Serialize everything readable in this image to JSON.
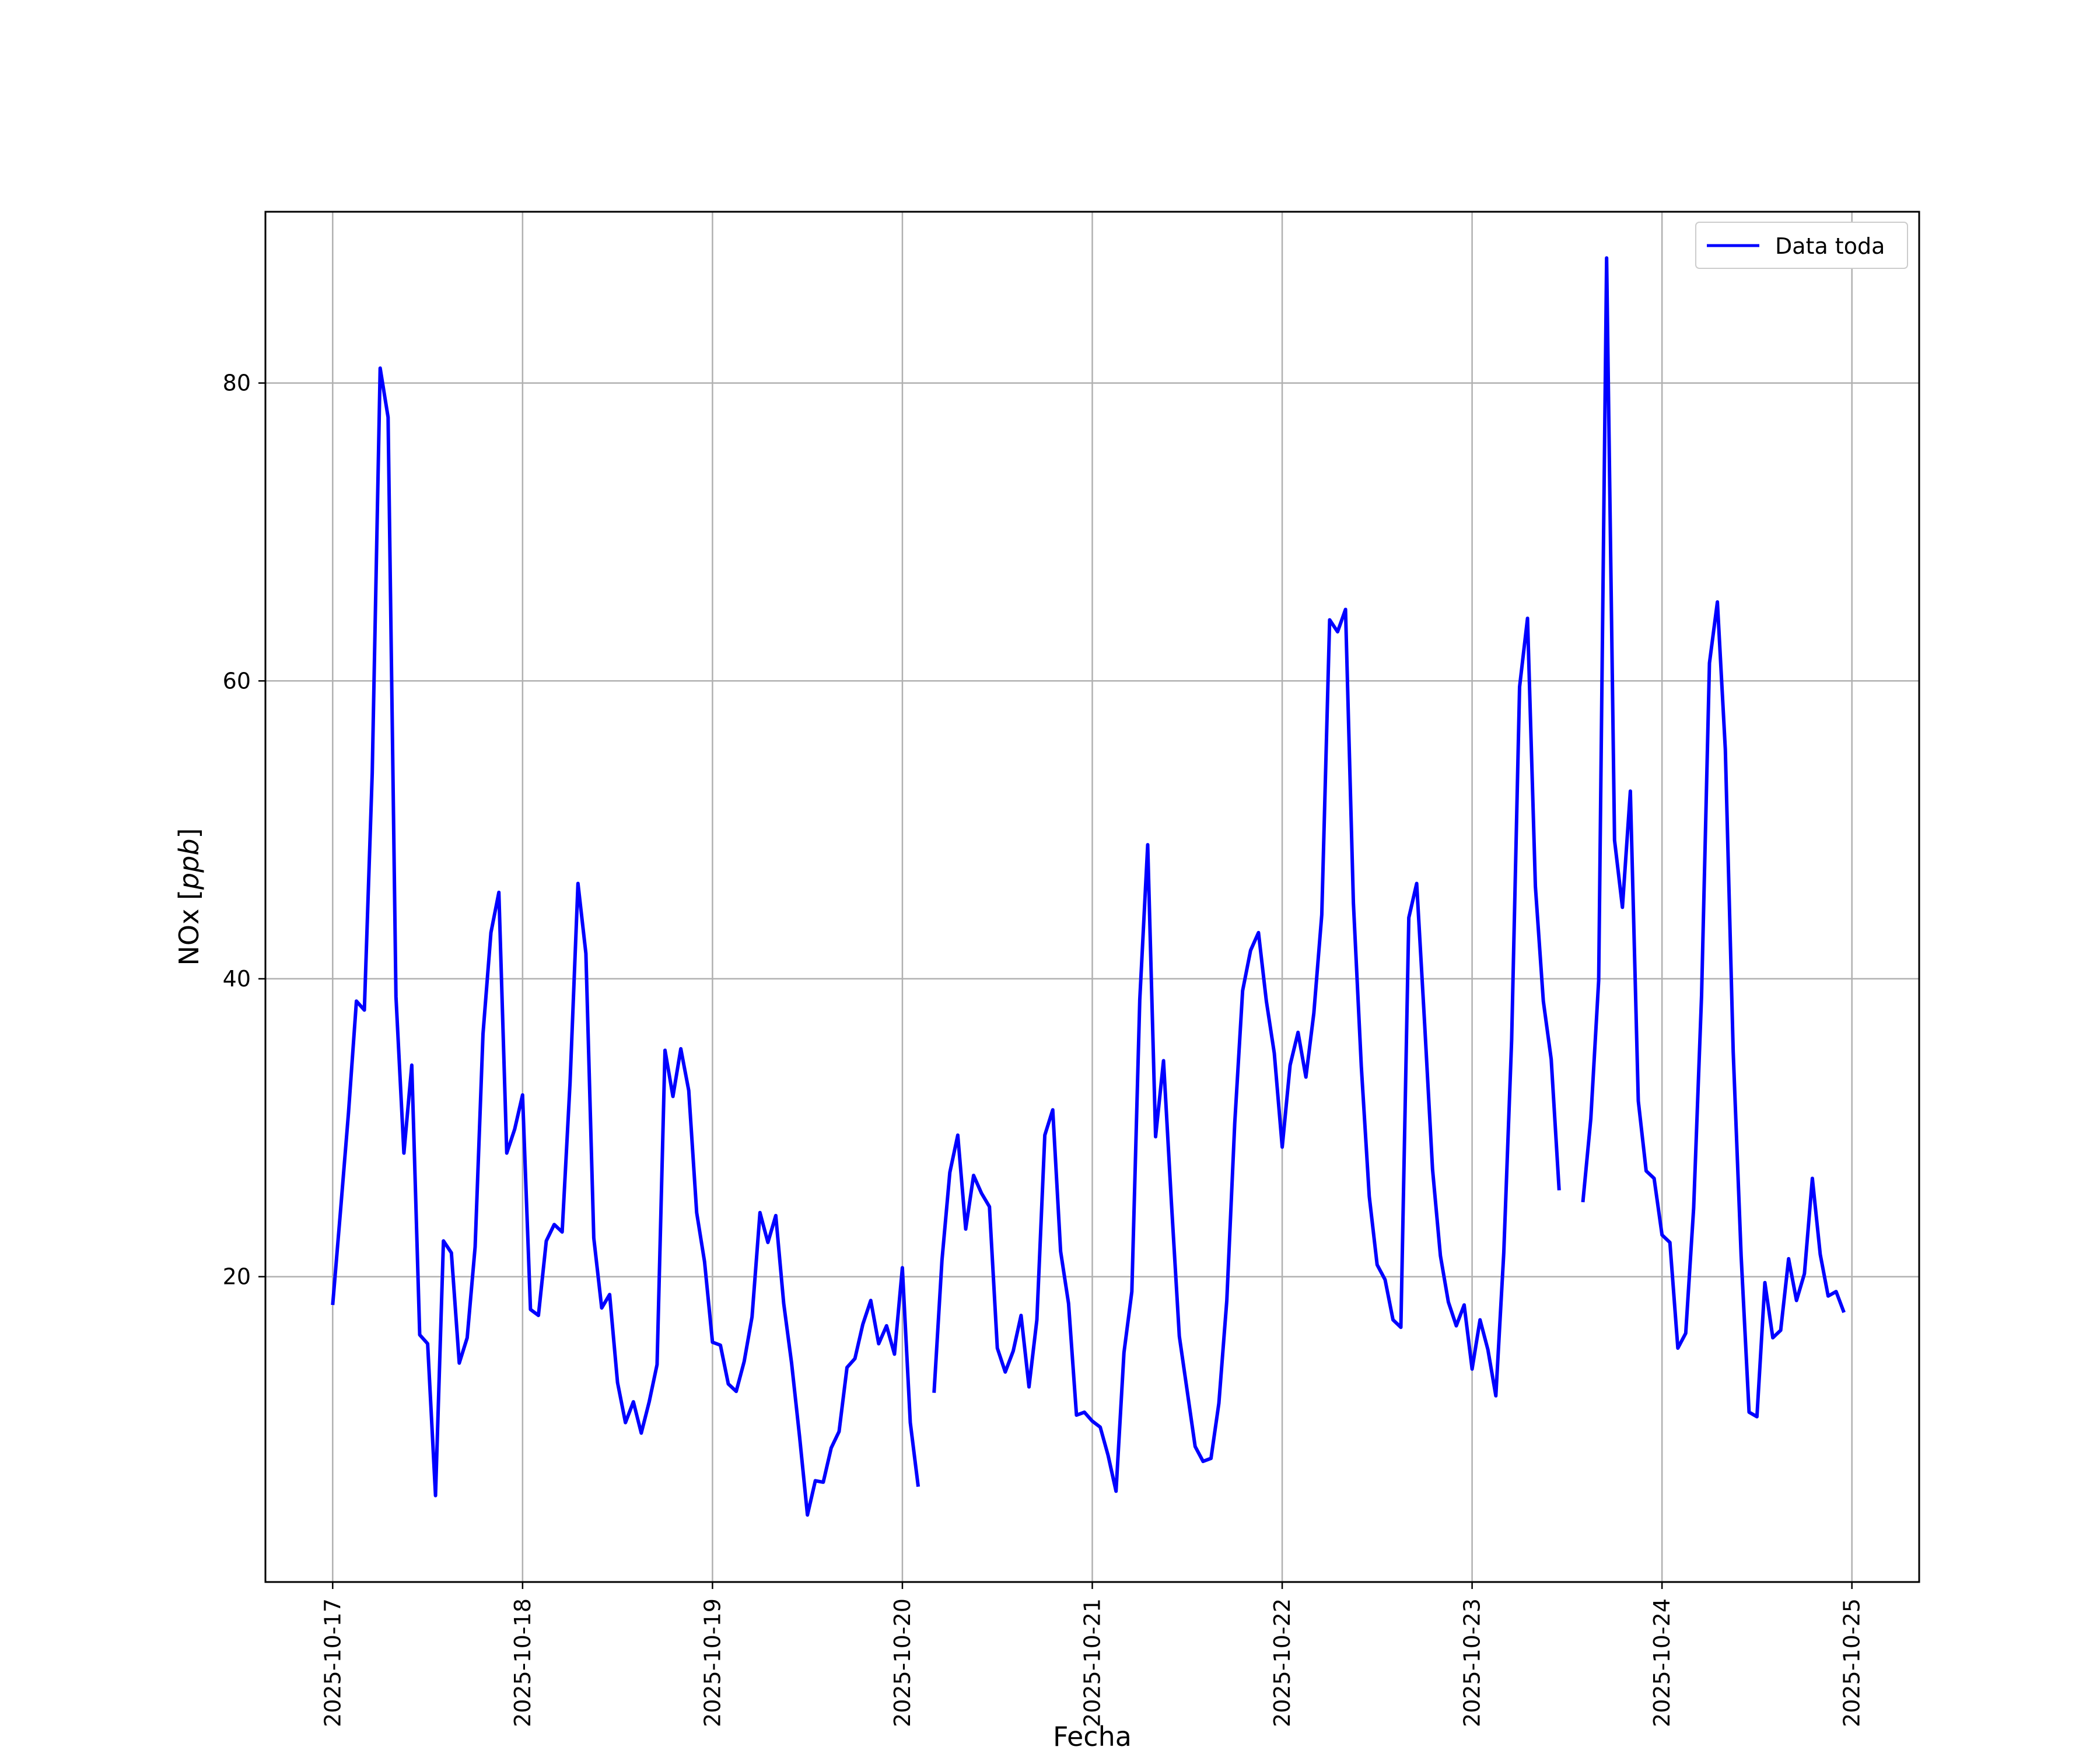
{
  "chart_data": {
    "type": "line",
    "xlabel": "Fecha",
    "ylabel_text": "NOx",
    "ylabel_unit": "ppb",
    "x_ticks": [
      "2025-10-17",
      "2025-10-18",
      "2025-10-19",
      "2025-10-20",
      "2025-10-21",
      "2025-10-22",
      "2025-10-23",
      "2025-10-24",
      "2025-10-25"
    ],
    "y_ticks": [
      20,
      40,
      60,
      80
    ],
    "xlim": [
      "2025-10-16T15:30",
      "2025-10-25T08:30"
    ],
    "ylim": [
      -0.5,
      91.5
    ],
    "grid": true,
    "legend_position": "top-right",
    "colors": {
      "line": "#0000ff",
      "grid": "#b0b0b0",
      "axes": "#000000"
    },
    "series": [
      {
        "name": "Data toda",
        "segments": [
          [
            [
              "2025-10-17T00:00",
              18.1
            ],
            [
              "2025-10-17T01:00",
              24.5
            ],
            [
              "2025-10-17T02:00",
              31.0
            ],
            [
              "2025-10-17T03:00",
              38.5
            ],
            [
              "2025-10-17T04:00",
              37.9
            ],
            [
              "2025-10-17T05:00",
              53.8
            ],
            [
              "2025-10-17T06:00",
              81.0
            ],
            [
              "2025-10-17T07:00",
              77.7
            ],
            [
              "2025-10-17T08:00",
              38.8
            ],
            [
              "2025-10-17T09:00",
              28.3
            ],
            [
              "2025-10-17T10:00",
              34.2
            ],
            [
              "2025-10-17T11:00",
              16.1
            ],
            [
              "2025-10-17T12:00",
              15.5
            ],
            [
              "2025-10-17T13:00",
              5.3
            ],
            [
              "2025-10-17T14:00",
              22.4
            ],
            [
              "2025-10-17T15:00",
              21.6
            ],
            [
              "2025-10-17T16:00",
              14.2
            ],
            [
              "2025-10-17T17:00",
              15.9
            ],
            [
              "2025-10-17T18:00",
              22.0
            ],
            [
              "2025-10-17T19:00",
              36.3
            ],
            [
              "2025-10-17T20:00",
              43.1
            ],
            [
              "2025-10-17T21:00",
              45.8
            ],
            [
              "2025-10-17T22:00",
              28.3
            ],
            [
              "2025-10-17T23:00",
              29.9
            ],
            [
              "2025-10-18T00:00",
              32.2
            ],
            [
              "2025-10-18T01:00",
              17.8
            ],
            [
              "2025-10-18T02:00",
              17.4
            ],
            [
              "2025-10-18T03:00",
              22.4
            ],
            [
              "2025-10-18T04:00",
              23.5
            ],
            [
              "2025-10-18T05:00",
              23.0
            ],
            [
              "2025-10-18T06:00",
              33.0
            ],
            [
              "2025-10-18T07:00",
              46.4
            ],
            [
              "2025-10-18T08:00",
              41.7
            ],
            [
              "2025-10-18T09:00",
              22.6
            ],
            [
              "2025-10-18T10:00",
              17.9
            ],
            [
              "2025-10-18T11:00",
              18.8
            ],
            [
              "2025-10-18T12:00",
              12.9
            ],
            [
              "2025-10-18T13:00",
              10.2
            ],
            [
              "2025-10-18T14:00",
              11.6
            ],
            [
              "2025-10-18T15:00",
              9.5
            ],
            [
              "2025-10-18T16:00",
              11.6
            ],
            [
              "2025-10-18T17:00",
              14.1
            ],
            [
              "2025-10-18T18:00",
              35.2
            ],
            [
              "2025-10-18T19:00",
              32.1
            ],
            [
              "2025-10-18T20:00",
              35.3
            ],
            [
              "2025-10-18T21:00",
              32.5
            ],
            [
              "2025-10-18T22:00",
              24.3
            ],
            [
              "2025-10-18T23:00",
              21.0
            ],
            [
              "2025-10-19T00:00",
              15.6
            ],
            [
              "2025-10-19T01:00",
              15.4
            ],
            [
              "2025-10-19T02:00",
              12.8
            ],
            [
              "2025-10-19T03:00",
              12.3
            ],
            [
              "2025-10-19T04:00",
              14.3
            ],
            [
              "2025-10-19T05:00",
              17.3
            ],
            [
              "2025-10-19T06:00",
              24.3
            ],
            [
              "2025-10-19T07:00",
              22.3
            ],
            [
              "2025-10-19T08:00",
              24.1
            ],
            [
              "2025-10-19T09:00",
              18.2
            ],
            [
              "2025-10-19T10:00",
              14.2
            ],
            [
              "2025-10-19T11:00",
              9.3
            ],
            [
              "2025-10-19T12:00",
              4.0
            ],
            [
              "2025-10-19T13:00",
              6.3
            ],
            [
              "2025-10-19T14:00",
              6.2
            ],
            [
              "2025-10-19T15:00",
              8.5
            ],
            [
              "2025-10-19T16:00",
              9.6
            ],
            [
              "2025-10-19T17:00",
              13.9
            ],
            [
              "2025-10-19T18:00",
              14.5
            ],
            [
              "2025-10-19T19:00",
              16.8
            ],
            [
              "2025-10-19T20:00",
              18.4
            ],
            [
              "2025-10-19T21:00",
              15.5
            ],
            [
              "2025-10-19T22:00",
              16.7
            ],
            [
              "2025-10-19T23:00",
              14.8
            ],
            [
              "2025-10-20T00:00",
              20.6
            ],
            [
              "2025-10-20T01:00",
              10.2
            ],
            [
              "2025-10-20T02:00",
              5.9
            ]
          ],
          [
            [
              "2025-10-20T04:00",
              12.2
            ],
            [
              "2025-10-20T05:00",
              21.1
            ],
            [
              "2025-10-20T06:00",
              27.0
            ],
            [
              "2025-10-20T07:00",
              29.5
            ],
            [
              "2025-10-20T08:00",
              23.2
            ],
            [
              "2025-10-20T09:00",
              26.8
            ],
            [
              "2025-10-20T10:00",
              25.6
            ],
            [
              "2025-10-20T11:00",
              24.7
            ],
            [
              "2025-10-20T12:00",
              15.2
            ],
            [
              "2025-10-20T13:00",
              13.6
            ],
            [
              "2025-10-20T14:00",
              15.0
            ],
            [
              "2025-10-20T15:00",
              17.4
            ],
            [
              "2025-10-20T16:00",
              12.6
            ],
            [
              "2025-10-20T17:00",
              17.1
            ],
            [
              "2025-10-20T18:00",
              29.5
            ],
            [
              "2025-10-20T19:00",
              31.2
            ],
            [
              "2025-10-20T20:00",
              21.7
            ],
            [
              "2025-10-20T21:00",
              18.2
            ],
            [
              "2025-10-20T22:00",
              10.7
            ],
            [
              "2025-10-20T23:00",
              10.9
            ],
            [
              "2025-10-21T00:00",
              10.3
            ],
            [
              "2025-10-21T01:00",
              9.9
            ],
            [
              "2025-10-21T02:00",
              8.0
            ],
            [
              "2025-10-21T03:00",
              5.6
            ],
            [
              "2025-10-21T04:00",
              14.9
            ],
            [
              "2025-10-21T05:00",
              19.0
            ],
            [
              "2025-10-21T06:00",
              38.6
            ],
            [
              "2025-10-21T07:00",
              49.0
            ],
            [
              "2025-10-21T08:00",
              29.4
            ],
            [
              "2025-10-21T09:00",
              34.5
            ],
            [
              "2025-10-21T10:00",
              25.0
            ],
            [
              "2025-10-21T11:00",
              16.0
            ],
            [
              "2025-10-21T12:00",
              12.3
            ],
            [
              "2025-10-21T13:00",
              8.6
            ],
            [
              "2025-10-21T14:00",
              7.6
            ],
            [
              "2025-10-21T15:00",
              7.8
            ],
            [
              "2025-10-21T16:00",
              11.5
            ],
            [
              "2025-10-21T17:00",
              18.4
            ],
            [
              "2025-10-21T18:00",
              30.3
            ],
            [
              "2025-10-21T19:00",
              39.2
            ],
            [
              "2025-10-21T20:00",
              41.9
            ],
            [
              "2025-10-21T21:00",
              43.1
            ],
            [
              "2025-10-21T22:00",
              38.5
            ],
            [
              "2025-10-21T23:00",
              35.0
            ],
            [
              "2025-10-22T00:00",
              28.7
            ],
            [
              "2025-10-22T01:00",
              34.2
            ],
            [
              "2025-10-22T02:00",
              36.4
            ],
            [
              "2025-10-22T03:00",
              33.4
            ],
            [
              "2025-10-22T04:00",
              37.7
            ],
            [
              "2025-10-22T05:00",
              44.3
            ],
            [
              "2025-10-22T06:00",
              64.1
            ],
            [
              "2025-10-22T07:00",
              63.3
            ],
            [
              "2025-10-22T08:00",
              64.8
            ],
            [
              "2025-10-22T09:00",
              45.1
            ],
            [
              "2025-10-22T10:00",
              34.1
            ],
            [
              "2025-10-22T11:00",
              25.4
            ],
            [
              "2025-10-22T12:00",
              20.8
            ],
            [
              "2025-10-22T13:00",
              19.8
            ],
            [
              "2025-10-22T14:00",
              17.1
            ],
            [
              "2025-10-22T15:00",
              16.6
            ],
            [
              "2025-10-22T16:00",
              44.1
            ],
            [
              "2025-10-22T17:00",
              46.4
            ],
            [
              "2025-10-22T18:00",
              37.0
            ],
            [
              "2025-10-22T19:00",
              27.2
            ],
            [
              "2025-10-22T20:00",
              21.4
            ],
            [
              "2025-10-22T21:00",
              18.3
            ],
            [
              "2025-10-22T22:00",
              16.7
            ],
            [
              "2025-10-22T23:00",
              18.1
            ],
            [
              "2025-10-23T00:00",
              13.8
            ],
            [
              "2025-10-23T01:00",
              17.1
            ],
            [
              "2025-10-23T02:00",
              15.1
            ],
            [
              "2025-10-23T03:00",
              12.0
            ],
            [
              "2025-10-23T04:00",
              21.6
            ],
            [
              "2025-10-23T05:00",
              35.9
            ],
            [
              "2025-10-23T06:00",
              59.6
            ],
            [
              "2025-10-23T07:00",
              64.2
            ],
            [
              "2025-10-23T08:00",
              46.2
            ],
            [
              "2025-10-23T09:00",
              38.5
            ],
            [
              "2025-10-23T10:00",
              34.6
            ],
            [
              "2025-10-23T11:00",
              25.8
            ]
          ],
          [
            [
              "2025-10-23T14:00",
              25.0
            ],
            [
              "2025-10-23T15:00",
              30.6
            ],
            [
              "2025-10-23T16:00",
              39.9
            ],
            [
              "2025-10-23T17:00",
              88.4
            ],
            [
              "2025-10-23T18:00",
              49.3
            ],
            [
              "2025-10-23T19:00",
              44.8
            ],
            [
              "2025-10-23T20:00",
              52.6
            ],
            [
              "2025-10-23T21:00",
              31.8
            ],
            [
              "2025-10-23T22:00",
              27.1
            ],
            [
              "2025-10-23T23:00",
              26.6
            ],
            [
              "2025-10-24T00:00",
              22.8
            ],
            [
              "2025-10-24T01:00",
              22.3
            ],
            [
              "2025-10-24T02:00",
              15.2
            ],
            [
              "2025-10-24T03:00",
              16.2
            ],
            [
              "2025-10-24T04:00",
              24.6
            ],
            [
              "2025-10-24T05:00",
              38.9
            ],
            [
              "2025-10-24T06:00",
              61.2
            ],
            [
              "2025-10-24T07:00",
              65.3
            ],
            [
              "2025-10-24T08:00",
              55.4
            ],
            [
              "2025-10-24T09:00",
              35.1
            ],
            [
              "2025-10-24T10:00",
              21.4
            ],
            [
              "2025-10-24T11:00",
              10.9
            ],
            [
              "2025-10-24T12:00",
              10.6
            ],
            [
              "2025-10-24T13:00",
              19.6
            ],
            [
              "2025-10-24T14:00",
              15.9
            ],
            [
              "2025-10-24T15:00",
              16.4
            ],
            [
              "2025-10-24T16:00",
              21.2
            ],
            [
              "2025-10-24T17:00",
              18.4
            ],
            [
              "2025-10-24T18:00",
              20.2
            ],
            [
              "2025-10-24T19:00",
              26.6
            ],
            [
              "2025-10-24T20:00",
              21.5
            ],
            [
              "2025-10-24T21:00",
              18.7
            ],
            [
              "2025-10-24T22:00",
              19.0
            ],
            [
              "2025-10-24T23:00",
              17.6
            ]
          ]
        ]
      }
    ]
  }
}
